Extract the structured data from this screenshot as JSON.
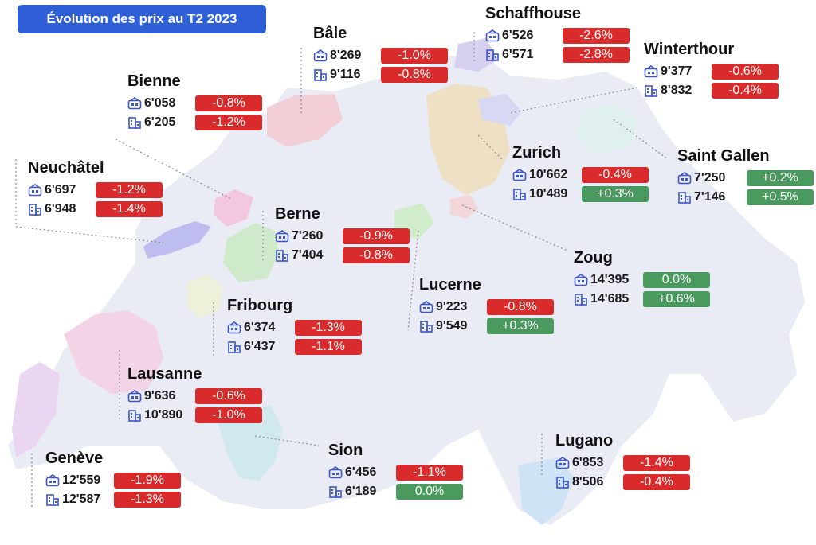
{
  "title": "Évolution des prix au T2 2023",
  "colors": {
    "title_bg": "#2f5fd6",
    "negative": "#d92b2b",
    "positive": "#4a9a5f",
    "map_base": "#e9ebf5"
  },
  "icons": {
    "apartment": "apartment-icon",
    "house": "house-icon"
  },
  "cities": [
    {
      "key": "schaffhouse",
      "name": "Schaffhouse",
      "apartment": "6'526",
      "apartment_change": "-2.6%",
      "house": "6'571",
      "house_change": "-2.8%"
    },
    {
      "key": "bale",
      "name": "Bâle",
      "apartment": "8'269",
      "apartment_change": "-1.0%",
      "house": "9'116",
      "house_change": "-0.8%"
    },
    {
      "key": "winterthour",
      "name": "Winterthour",
      "apartment": "9'377",
      "apartment_change": "-0.6%",
      "house": "8'832",
      "house_change": "-0.4%"
    },
    {
      "key": "bienne",
      "name": "Bienne",
      "apartment": "6'058",
      "apartment_change": "-0.8%",
      "house": "6'205",
      "house_change": "-1.2%"
    },
    {
      "key": "zurich",
      "name": "Zurich",
      "apartment": "10'662",
      "apartment_change": "-0.4%",
      "house": "10'489",
      "house_change": "+0.3%"
    },
    {
      "key": "saint-gallen",
      "name": "Saint Gallen",
      "apartment": "7'250",
      "apartment_change": "+0.2%",
      "house": "7'146",
      "house_change": "+0.5%"
    },
    {
      "key": "neuchatel",
      "name": "Neuchâtel",
      "apartment": "6'697",
      "apartment_change": "-1.2%",
      "house": "6'948",
      "house_change": "-1.4%"
    },
    {
      "key": "berne",
      "name": "Berne",
      "apartment": "7'260",
      "apartment_change": "-0.9%",
      "house": "7'404",
      "house_change": "-0.8%"
    },
    {
      "key": "zoug",
      "name": "Zoug",
      "apartment": "14'395",
      "apartment_change": "0.0%",
      "house": "14'685",
      "house_change": "+0.6%"
    },
    {
      "key": "lucerne",
      "name": "Lucerne",
      "apartment": "9'223",
      "apartment_change": "-0.8%",
      "house": "9'549",
      "house_change": "+0.3%"
    },
    {
      "key": "fribourg",
      "name": "Fribourg",
      "apartment": "6'374",
      "apartment_change": "-1.3%",
      "house": "6'437",
      "house_change": "-1.1%"
    },
    {
      "key": "lausanne",
      "name": "Lausanne",
      "apartment": "9'636",
      "apartment_change": "-0.6%",
      "house": "10'890",
      "house_change": "-1.0%"
    },
    {
      "key": "sion",
      "name": "Sion",
      "apartment": "6'456",
      "apartment_change": "-1.1%",
      "house": "6'189",
      "house_change": "0.0%"
    },
    {
      "key": "lugano",
      "name": "Lugano",
      "apartment": "6'853",
      "apartment_change": "-1.4%",
      "house": "8'506",
      "house_change": "-0.4%"
    },
    {
      "key": "geneve",
      "name": "Genève",
      "apartment": "12'559",
      "apartment_change": "-1.9%",
      "house": "12'587",
      "house_change": "-1.3%"
    }
  ]
}
